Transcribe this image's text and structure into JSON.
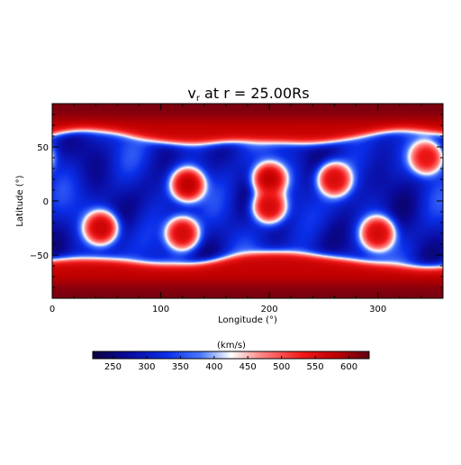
{
  "chart_data": {
    "type": "heatmap",
    "title": {
      "main": "v",
      "sub": "r",
      "rest": " at r = 25.00Rs"
    },
    "xlabel": "Longitude (°)",
    "ylabel": "Latitude (°)",
    "xlim": [
      0,
      360
    ],
    "ylim": [
      -90,
      90
    ],
    "xticks": [
      0,
      100,
      200,
      300
    ],
    "yticks": [
      -50,
      0,
      50
    ],
    "colorbar": {
      "label": "(km/s)",
      "range": [
        220,
        630
      ],
      "ticks": [
        250,
        300,
        350,
        400,
        450,
        500,
        550,
        600
      ],
      "colors": [
        {
          "v": 220,
          "c": "#0c0040"
        },
        {
          "v": 270,
          "c": "#0a0a9a"
        },
        {
          "v": 330,
          "c": "#0a2ee8"
        },
        {
          "v": 380,
          "c": "#4b78ff"
        },
        {
          "v": 425,
          "c": "#ffffff"
        },
        {
          "v": 470,
          "c": "#ff8585"
        },
        {
          "v": 530,
          "c": "#f21a1a"
        },
        {
          "v": 580,
          "c": "#c20000"
        },
        {
          "v": 630,
          "c": "#640014"
        }
      ]
    },
    "field_description": "Fast wind (~600 km/s) at high latitudes; slow wind (~300 km/s) band between about -55° and +55° with embedded fast-wind patches.",
    "fast_patches": [
      {
        "lon": 45,
        "lat": -25,
        "value": 570
      },
      {
        "lon": 125,
        "lat": 15,
        "value": 580
      },
      {
        "lon": 120,
        "lat": -30,
        "value": 560
      },
      {
        "lon": 200,
        "lat": 20,
        "value": 580
      },
      {
        "lon": 200,
        "lat": -5,
        "value": 560
      },
      {
        "lon": 260,
        "lat": 20,
        "value": 555
      },
      {
        "lon": 300,
        "lat": -30,
        "value": 560
      },
      {
        "lon": 345,
        "lat": 40,
        "value": 540
      }
    ]
  }
}
